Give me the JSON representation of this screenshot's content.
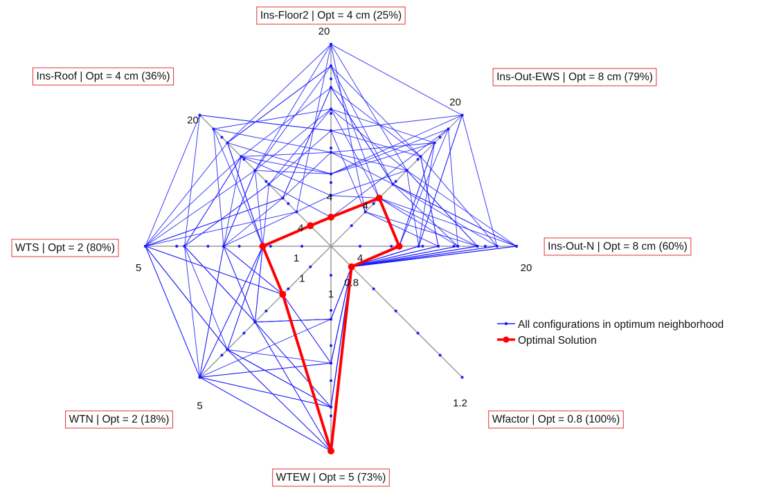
{
  "chart_data": {
    "type": "radar",
    "title": "",
    "axes": [
      {
        "label": "Ins-Floor2 | Opt = 4 cm (25%)",
        "min": 4,
        "max": 20,
        "min_label": "4",
        "max_label": "20",
        "optimum": 4
      },
      {
        "label": "Ins-Out-EWS | Opt = 8 cm (79%)",
        "min": 4,
        "max": 20,
        "min_label": "4",
        "max_label": "20",
        "optimum": 8
      },
      {
        "label": "Ins-Out-N | Opt = 8 cm (60%)",
        "min": 4,
        "max": 20,
        "min_label": "4",
        "max_label": "20",
        "optimum": 8
      },
      {
        "label": "Wfactor | Opt = 0.8 (100%)",
        "min": 0.8,
        "max": 1.2,
        "min_label": "0.8",
        "max_label": "1.2",
        "optimum": 0.8
      },
      {
        "label": "WTEW | Opt = 5 (73%)",
        "min": 1,
        "max": 5,
        "min_label": "1",
        "max_label": "5",
        "optimum": 5
      },
      {
        "label": "WTN | Opt = 2 (18%)",
        "min": 1,
        "max": 5,
        "min_label": "1",
        "max_label": "5",
        "optimum": 2
      },
      {
        "label": "WTS | Opt = 2 (80%)",
        "min": 1,
        "max": 5,
        "min_label": "1",
        "max_label": "5",
        "optimum": 2
      },
      {
        "label": "Ins-Roof | Opt = 4 cm (36%)",
        "min": 4,
        "max": 20,
        "min_label": "4",
        "max_label": "20",
        "optimum": 4
      }
    ],
    "series": [
      {
        "name": "All configurations in optimum neighborhood",
        "color": "#1a1aff",
        "configurations": [
          [
            20,
            20,
            18,
            0.8,
            4,
            5,
            2,
            16
          ],
          [
            18,
            8,
            20,
            0.8,
            5,
            3,
            2,
            12
          ],
          [
            16,
            10,
            14,
            0.8,
            3,
            4,
            5,
            14
          ],
          [
            14,
            12,
            16,
            0.8,
            5,
            5,
            3,
            18
          ],
          [
            12,
            14,
            12,
            0.8,
            2,
            3,
            4,
            10
          ],
          [
            10,
            16,
            10,
            0.8,
            4,
            4,
            5,
            8
          ],
          [
            8,
            18,
            8,
            0.8,
            5,
            2,
            3,
            14
          ],
          [
            6,
            12,
            20,
            0.8,
            3,
            5,
            5,
            6
          ],
          [
            20,
            6,
            16,
            0.8,
            2,
            3,
            3,
            12
          ],
          [
            18,
            10,
            18,
            0.8,
            4,
            4,
            2,
            16
          ],
          [
            14,
            8,
            14,
            0.8,
            5,
            5,
            4,
            10
          ],
          [
            12,
            20,
            10,
            0.8,
            3,
            2,
            5,
            20
          ],
          [
            16,
            14,
            12,
            0.8,
            4,
            3,
            3,
            8
          ],
          [
            10,
            10,
            20,
            0.8,
            5,
            4,
            2,
            18
          ],
          [
            8,
            16,
            8,
            0.8,
            2,
            5,
            5,
            12
          ],
          [
            6,
            8,
            16,
            0.8,
            4,
            3,
            4,
            14
          ],
          [
            20,
            12,
            10,
            0.8,
            3,
            2,
            3,
            6
          ],
          [
            18,
            14,
            18,
            0.8,
            5,
            4,
            5,
            16
          ],
          [
            4,
            18,
            14,
            0.8,
            4,
            5,
            2,
            10
          ],
          [
            12,
            6,
            12,
            0.8,
            2,
            3,
            4,
            20
          ],
          [
            16,
            10,
            20,
            0.8,
            5,
            2,
            5,
            8
          ],
          [
            14,
            16,
            8,
            0.8,
            3,
            5,
            3,
            12
          ],
          [
            10,
            12,
            16,
            0.8,
            4,
            4,
            4,
            14
          ],
          [
            8,
            20,
            10,
            0.8,
            5,
            3,
            2,
            16
          ]
        ]
      },
      {
        "name": "Optimal Solution",
        "color": "#ff0000",
        "values": [
          4,
          8,
          8,
          0.8,
          5,
          2,
          2,
          4
        ]
      }
    ],
    "legend": {
      "position": "right",
      "entries": [
        "All configurations in optimum neighborhood",
        "Optimal Solution"
      ]
    },
    "grid": false
  }
}
